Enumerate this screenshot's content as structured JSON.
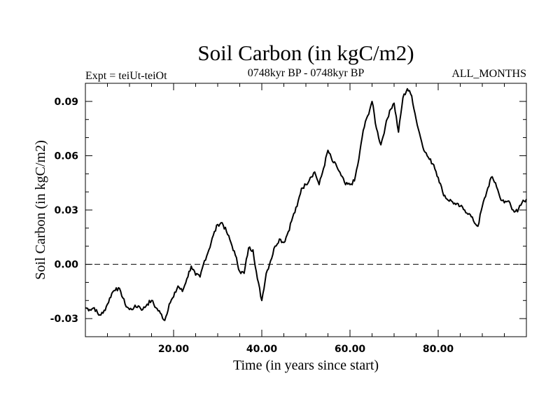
{
  "chart_data": {
    "type": "line",
    "title": "Soil Carbon (in kgC/m2)",
    "subtitle_left": "Expt = teiUt-teiOt",
    "subtitle_center": "0748kyr BP - 0748kyr BP",
    "subtitle_right": "ALL_MONTHS",
    "xlabel": "Time (in years since start)",
    "ylabel": "Soil Carbon (in kgC/m2)",
    "xlim": [
      0,
      100
    ],
    "ylim": [
      -0.04,
      0.1
    ],
    "xticks": [
      20,
      40,
      60,
      80
    ],
    "xtick_labels": [
      "20.00",
      "40.00",
      "60.00",
      "80.00"
    ],
    "yticks": [
      -0.03,
      0.0,
      0.03,
      0.06,
      0.09
    ],
    "ytick_labels": [
      "-0.03",
      "0.00",
      "0.03",
      "0.06",
      "0.09"
    ],
    "reference_line": {
      "y": 0.0,
      "style": "dashed"
    },
    "series": [
      {
        "name": "Soil Carbon",
        "color": "#000000",
        "x": [
          0,
          1,
          2,
          3,
          4,
          5,
          6,
          7,
          8,
          9,
          10,
          11,
          12,
          13,
          14,
          15,
          16,
          17,
          18,
          19,
          20,
          21,
          22,
          23,
          24,
          25,
          26,
          27,
          28,
          29,
          30,
          31,
          32,
          33,
          34,
          35,
          36,
          37,
          38,
          39,
          40,
          41,
          42,
          43,
          44,
          45,
          46,
          47,
          48,
          49,
          50,
          51,
          52,
          53,
          54,
          55,
          56,
          57,
          58,
          59,
          60,
          61,
          62,
          63,
          64,
          65,
          66,
          67,
          68,
          69,
          70,
          71,
          72,
          73,
          74,
          75,
          76,
          77,
          78,
          79,
          80,
          81,
          82,
          83,
          84,
          85,
          86,
          87,
          88,
          89,
          90,
          91,
          92,
          93,
          94,
          95,
          96,
          97,
          98,
          99,
          100
        ],
        "values": [
          -0.024,
          -0.025,
          -0.024,
          -0.028,
          -0.027,
          -0.022,
          -0.016,
          -0.013,
          -0.015,
          -0.022,
          -0.025,
          -0.024,
          -0.023,
          -0.025,
          -0.022,
          -0.02,
          -0.024,
          -0.027,
          -0.031,
          -0.022,
          -0.018,
          -0.012,
          -0.015,
          -0.008,
          -0.001,
          -0.006,
          -0.007,
          0.002,
          0.008,
          0.016,
          0.022,
          0.023,
          0.018,
          0.012,
          0.005,
          -0.004,
          -0.005,
          0.009,
          0.008,
          -0.008,
          -0.02,
          -0.005,
          0.002,
          0.01,
          0.014,
          0.012,
          0.018,
          0.026,
          0.032,
          0.042,
          0.044,
          0.048,
          0.051,
          0.044,
          0.053,
          0.063,
          0.057,
          0.054,
          0.049,
          0.044,
          0.044,
          0.046,
          0.058,
          0.074,
          0.082,
          0.09,
          0.075,
          0.066,
          0.076,
          0.085,
          0.089,
          0.073,
          0.092,
          0.097,
          0.093,
          0.08,
          0.07,
          0.062,
          0.058,
          0.055,
          0.048,
          0.04,
          0.036,
          0.035,
          0.033,
          0.032,
          0.03,
          0.028,
          0.024,
          0.021,
          0.032,
          0.04,
          0.048,
          0.045,
          0.037,
          0.034,
          0.035,
          0.03,
          0.029,
          0.034,
          0.036
        ]
      }
    ]
  }
}
